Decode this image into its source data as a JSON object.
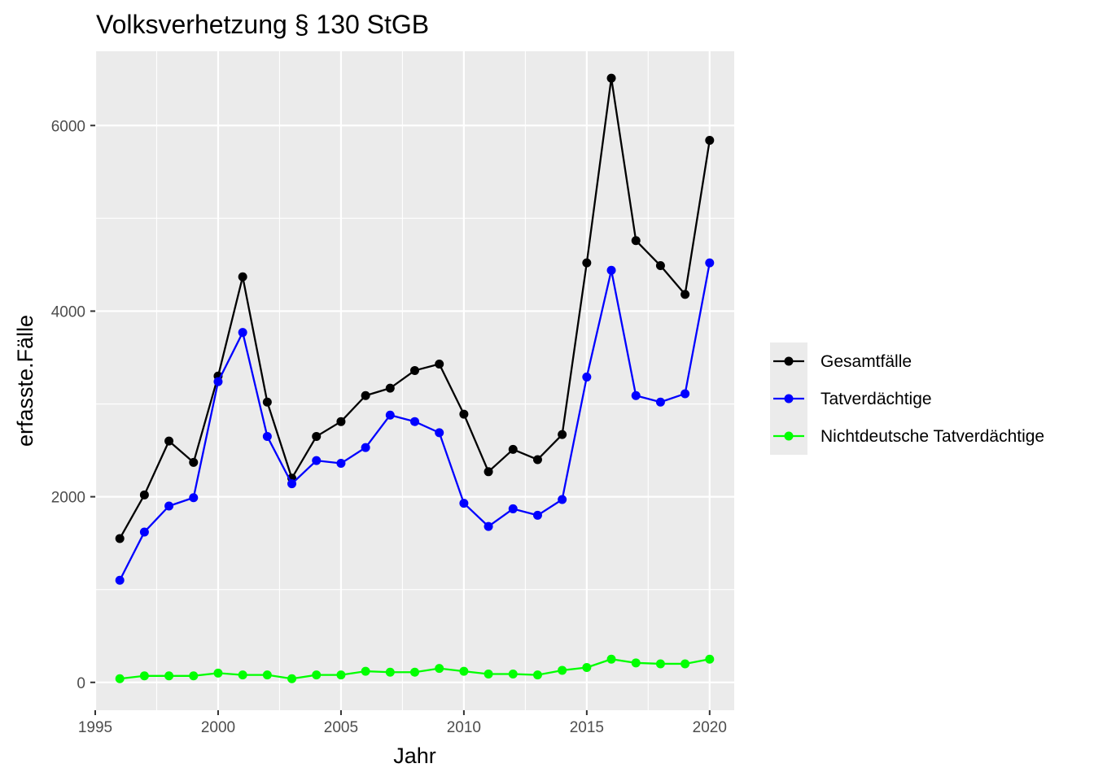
{
  "chart_data": {
    "type": "line",
    "title": "Volksverhetzung § 130 StGB",
    "xlabel": "Jahr",
    "ylabel": "erfasste.Fälle",
    "xlim": [
      1995,
      2021
    ],
    "ylim": [
      -300,
      6800
    ],
    "x_ticks": [
      1995,
      2000,
      2005,
      2010,
      2015,
      2020
    ],
    "y_ticks": [
      0,
      2000,
      4000,
      6000
    ],
    "grid": true,
    "legend_position": "right",
    "x": [
      1996,
      1997,
      1998,
      1999,
      2000,
      2001,
      2002,
      2003,
      2004,
      2005,
      2006,
      2007,
      2008,
      2009,
      2010,
      2011,
      2012,
      2013,
      2014,
      2015,
      2016,
      2017,
      2018,
      2019,
      2020
    ],
    "series": [
      {
        "name": "Gesamtfälle",
        "color": "#000000",
        "values": [
          1550,
          2020,
          2600,
          2370,
          3300,
          4370,
          3020,
          2200,
          2650,
          2810,
          3090,
          3170,
          3360,
          3430,
          2890,
          2270,
          2510,
          2400,
          2670,
          4520,
          6510,
          4760,
          4490,
          4180,
          5840
        ]
      },
      {
        "name": "Tatverdächtige",
        "color": "#0000ff",
        "values": [
          1100,
          1620,
          1900,
          1990,
          3240,
          3770,
          2650,
          2140,
          2390,
          2360,
          2530,
          2880,
          2810,
          2690,
          1930,
          1680,
          1870,
          1800,
          1970,
          3290,
          4440,
          3090,
          3020,
          3110,
          4520
        ]
      },
      {
        "name": "Nichtdeutsche Tatverdächtige",
        "color": "#00ff00",
        "values": [
          40,
          70,
          70,
          70,
          100,
          80,
          80,
          40,
          80,
          80,
          120,
          110,
          110,
          150,
          120,
          90,
          90,
          80,
          130,
          160,
          250,
          210,
          200,
          200,
          250
        ]
      }
    ]
  }
}
